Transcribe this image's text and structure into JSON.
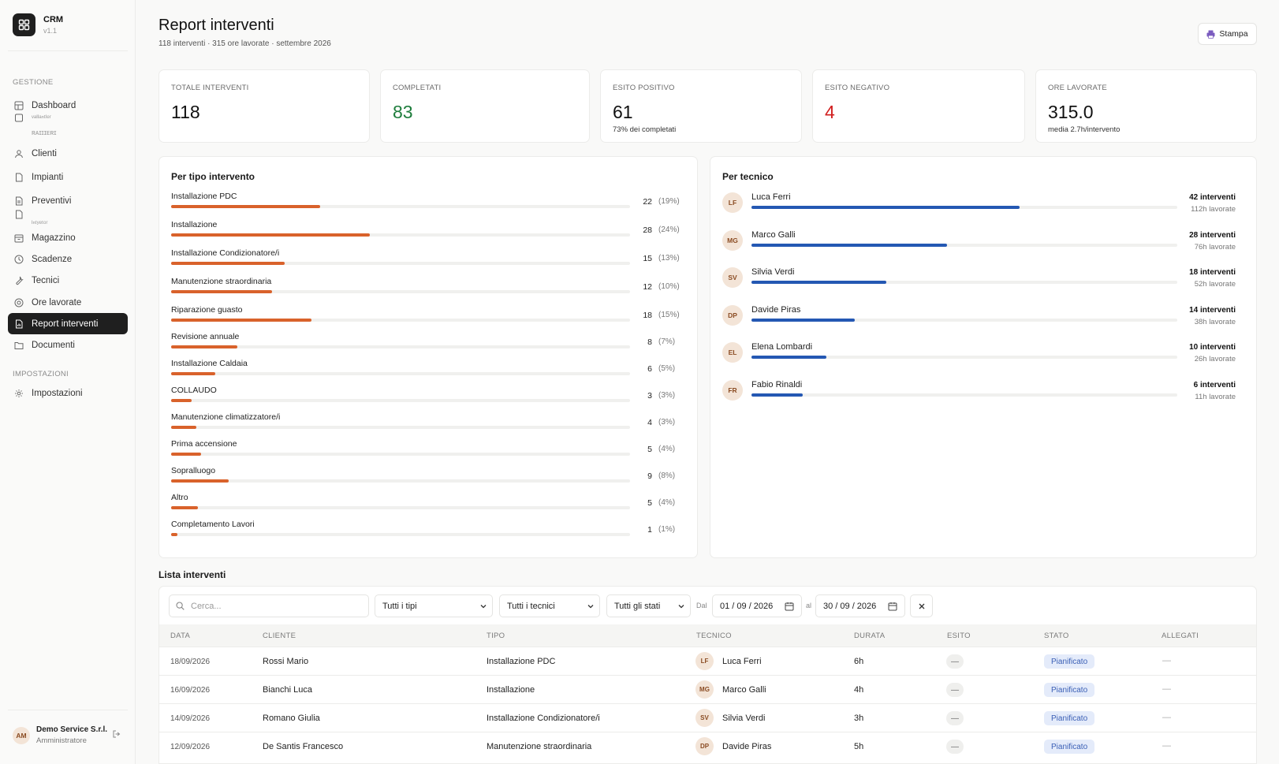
{
  "app": {
    "name": "CRM",
    "version": "v1.1"
  },
  "sidebar": {
    "section_gestione": "GESTIONE",
    "section_impostazioni": "IMPOSTAZIONI",
    "items": [
      {
        "label": "Dashboard",
        "icon": "grid-icon"
      },
      {
        "label": "Clienti",
        "icon": "users-icon"
      },
      {
        "label": "Impianti",
        "icon": "file-icon"
      },
      {
        "label": "Preventivi",
        "icon": "document-icon"
      },
      {
        "label": "Magazzino",
        "icon": "box-icon"
      },
      {
        "label": "Scadenze",
        "icon": "clock-icon"
      },
      {
        "label": "Tecnici",
        "icon": "wrench-icon"
      },
      {
        "label": "Ore lavorate",
        "icon": "timer-icon"
      },
      {
        "label": "Report interventi",
        "icon": "report-icon",
        "active": true
      },
      {
        "label": "Documenti",
        "icon": "folder-icon"
      },
      {
        "label": "Impostazioni",
        "icon": "gear-icon"
      }
    ],
    "ghost_1": "ᵛᵃᴵᴵᵃⁿᵗᴵᵉʳ",
    "ghost_2": "ʀᴀɪɪɪᴇʀɪ",
    "ghost_3": "ᴵⁿᵗʸᵉᵗᵒʳ",
    "user": {
      "initials": "AM",
      "name": "Demo Service S.r.l.",
      "role": "Amministratore"
    }
  },
  "header": {
    "title": "Report interventi",
    "subtitle": "118 interventi · 315 ore lavorate · settembre 2026",
    "print_label": "Stampa"
  },
  "kpis": [
    {
      "label": "TOTALE INTERVENTI",
      "value": "118",
      "sub": "",
      "color": "#111111"
    },
    {
      "label": "COMPLETATI",
      "value": "83",
      "sub": "",
      "color": "#1e7d3c"
    },
    {
      "label": "ESITO POSITIVO",
      "value": "61",
      "sub": "73% dei completati",
      "color": "#111111"
    },
    {
      "label": "ESITO NEGATIVO",
      "value": "4",
      "sub": "",
      "color": "#d11f1f"
    },
    {
      "label": "ORE LAVORATE",
      "value": "315.0",
      "sub": "media 2.7h/intervento",
      "color": "#111111"
    }
  ],
  "by_type": {
    "title": "Per tipo intervento",
    "bar_color": "#d9622b",
    "rows": [
      {
        "label": "Installazione PDC",
        "count": "22",
        "pct": "(19%)",
        "fraction": 0.324
      },
      {
        "label": "Installazione",
        "count": "28",
        "pct": "(24%)",
        "fraction": 0.433
      },
      {
        "label": "Installazione Condizionatore/i",
        "count": "15",
        "pct": "(13%)",
        "fraction": 0.247
      },
      {
        "label": "Manutenzione straordinaria",
        "count": "12",
        "pct": "(10%)",
        "fraction": 0.22
      },
      {
        "label": "Riparazione guasto",
        "count": "18",
        "pct": "(15%)",
        "fraction": 0.306
      },
      {
        "label": "Revisione annuale",
        "count": "8",
        "pct": "(7%)",
        "fraction": 0.144
      },
      {
        "label": "Installazione Caldaia",
        "count": "6",
        "pct": "(5%)",
        "fraction": 0.096
      },
      {
        "label": "COLLAUDO",
        "count": "3",
        "pct": "(3%)",
        "fraction": 0.045
      },
      {
        "label": "Manutenzione climatizzatore/i",
        "count": "4",
        "pct": "(3%)",
        "fraction": 0.055
      },
      {
        "label": "Prima accensione",
        "count": "5",
        "pct": "(4%)",
        "fraction": 0.065
      },
      {
        "label": "Sopralluogo",
        "count": "9",
        "pct": "(8%)",
        "fraction": 0.125
      },
      {
        "label": "Altro",
        "count": "5",
        "pct": "(4%)",
        "fraction": 0.058
      },
      {
        "label": "Completamento Lavori",
        "count": "1",
        "pct": "(1%)",
        "fraction": 0.014
      }
    ]
  },
  "by_tech": {
    "title": "Per tecnico",
    "bar_color": "#2458b3",
    "rows": [
      {
        "initials": "LF",
        "name": "Luca Ferri",
        "count": "42 interventi",
        "hours": "112h lavorate",
        "fraction": 0.629
      },
      {
        "initials": "MG",
        "name": "Marco Galli",
        "count": "28 interventi",
        "hours": "76h lavorate",
        "fraction": 0.46
      },
      {
        "initials": "SV",
        "name": "Silvia Verdi",
        "count": "18 interventi",
        "hours": "52h lavorate",
        "fraction": 0.316
      },
      {
        "initials": "DP",
        "name": "Davide Piras",
        "count": "14 interventi",
        "hours": "38h lavorate",
        "fraction": 0.242
      },
      {
        "initials": "EL",
        "name": "Elena Lombardi",
        "count": "10 interventi",
        "hours": "26h lavorate",
        "fraction": 0.175
      },
      {
        "initials": "FR",
        "name": "Fabio Rinaldi",
        "count": "6 interventi",
        "hours": "11h lavorate",
        "fraction": 0.12
      }
    ]
  },
  "list": {
    "title": "Lista interventi",
    "filters": {
      "search_placeholder": "Cerca...",
      "type": "Tutti i tipi",
      "tech": "Tutti i tecnici",
      "status": "Tutti gli stati",
      "from_label": "Dal",
      "from": "01 / 09 / 2026",
      "to_label": "al",
      "to": "30 / 09 / 2026"
    },
    "columns": [
      "DATA",
      "CLIENTE",
      "TIPO",
      "TECNICO",
      "DURATA",
      "ESITO",
      "STATO",
      "ALLEGATI"
    ],
    "rows": [
      {
        "date": "18/09/2026",
        "client": "Rossi Mario",
        "type": "Installazione PDC",
        "tech_initials": "LF",
        "tech": "Luca Ferri",
        "duration": "6h",
        "esito": "—",
        "stato": "Pianificato",
        "allegati": "—"
      },
      {
        "date": "16/09/2026",
        "client": "Bianchi Luca",
        "type": "Installazione",
        "tech_initials": "MG",
        "tech": "Marco Galli",
        "duration": "4h",
        "esito": "—",
        "stato": "Pianificato",
        "allegati": "—"
      },
      {
        "date": "14/09/2026",
        "client": "Romano Giulia",
        "type": "Installazione Condizionatore/i",
        "tech_initials": "SV",
        "tech": "Silvia Verdi",
        "duration": "3h",
        "esito": "—",
        "stato": "Pianificato",
        "allegati": "—"
      },
      {
        "date": "12/09/2026",
        "client": "De Santis Francesco",
        "type": "Manutenzione straordinaria",
        "tech_initials": "DP",
        "tech": "Davide Piras",
        "duration": "5h",
        "esito": "—",
        "stato": "Pianificato",
        "allegati": "—"
      }
    ]
  }
}
